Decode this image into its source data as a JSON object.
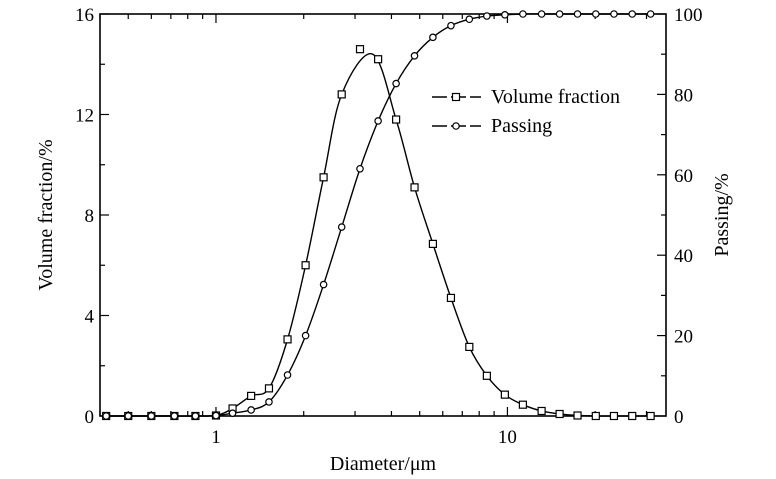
{
  "chart_data": {
    "type": "scatter",
    "xlabel": "Diameter/μm",
    "ylabel_left": "Volume fraction/%",
    "ylabel_right": "Passing/%",
    "x_scale": "log",
    "xlim": [
      0.4,
      35
    ],
    "x_ticks": [
      {
        "value": 1,
        "label": "1"
      },
      {
        "value": 10,
        "label": "10"
      }
    ],
    "ylim_left": [
      0,
      16
    ],
    "ylim_right": [
      0,
      100
    ],
    "y_ticks_left": [
      {
        "value": 0,
        "label": "0"
      },
      {
        "value": 4,
        "label": "4"
      },
      {
        "value": 8,
        "label": "8"
      },
      {
        "value": 12,
        "label": "12"
      },
      {
        "value": 16,
        "label": "16"
      }
    ],
    "y_ticks_right": [
      {
        "value": 0,
        "label": "0"
      },
      {
        "value": 20,
        "label": "20"
      },
      {
        "value": 40,
        "label": "40"
      },
      {
        "value": 60,
        "label": "60"
      },
      {
        "value": 80,
        "label": "80"
      },
      {
        "value": 100,
        "label": "100"
      }
    ],
    "grid": false,
    "legend_position": "upper-right",
    "series": [
      {
        "name": "Volume fraction",
        "axis": "left",
        "marker": "square",
        "x": [
          0.42,
          0.5,
          0.6,
          0.72,
          0.85,
          1.0,
          1.14,
          1.32,
          1.52,
          1.76,
          2.03,
          2.34,
          2.7,
          3.12,
          3.6,
          4.15,
          4.8,
          5.55,
          6.4,
          7.4,
          8.5,
          9.8,
          11.3,
          13.1,
          15.1,
          17.4,
          20.1,
          23.2,
          26.8,
          31.0
        ],
        "y": [
          0,
          0,
          0,
          0,
          0,
          0.02,
          0.3,
          0.8,
          1.1,
          3.05,
          6.0,
          9.5,
          12.8,
          14.6,
          14.2,
          11.8,
          9.1,
          6.85,
          4.7,
          2.75,
          1.6,
          0.85,
          0.45,
          0.2,
          0.08,
          0.02,
          0,
          0,
          0,
          0
        ],
        "curve_peak": {
          "x": 3.45,
          "y": 14.4
        }
      },
      {
        "name": "Passing",
        "axis": "right",
        "marker": "circle",
        "x": [
          0.42,
          0.5,
          0.6,
          0.72,
          0.85,
          1.0,
          1.14,
          1.32,
          1.52,
          1.76,
          2.03,
          2.34,
          2.7,
          3.12,
          3.6,
          4.15,
          4.8,
          5.55,
          6.4,
          7.4,
          8.5,
          9.8,
          11.3,
          13.1,
          15.1,
          17.4,
          20.1,
          23.2,
          26.8,
          31.0
        ],
        "y": [
          0,
          0,
          0,
          0,
          0,
          0.1,
          0.7,
          1.5,
          3.5,
          10.2,
          20.0,
          32.7,
          47.0,
          61.5,
          73.4,
          82.7,
          89.6,
          94.2,
          97.1,
          98.7,
          99.5,
          99.8,
          100,
          100,
          100,
          100,
          100,
          100,
          100,
          100
        ]
      }
    ]
  }
}
